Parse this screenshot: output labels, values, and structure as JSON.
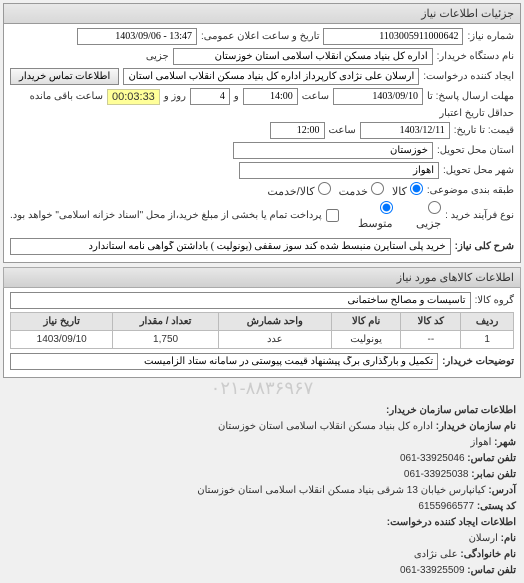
{
  "header": {
    "title": "جزئیات اطلاعات نیاز"
  },
  "fields": {
    "requestNo_label": "شماره نیاز:",
    "requestNo": "1103005911000642",
    "announceDateTime_label": "تاریخ و ساعت اعلان عمومی:",
    "announceDateTime": "13:47 - 1403/09/06",
    "deviceName_label": "نام دستگاه خریدار:",
    "deviceName": "اداره کل بنیاد مسکن انقلاب اسلامی استان خوزستان",
    "partial_label": "جزیی",
    "requester_label": "ایجاد کننده درخواست:",
    "requester": "ارسلان علی نژادی کارپرداز اداره کل بنیاد مسکن انقلاب اسلامی استان خوزست",
    "contactBtn": "اطلاعات تماس خریدار",
    "deadlineSend_label": "مهلت ارسال پاسخ: تا",
    "deadlineSend_date": "1403/09/10",
    "time_label": "ساعت",
    "deadlineSend_time": "14:00",
    "and_label": "و",
    "remain_days": "4",
    "day_label": "روز و",
    "remain_timer": "00:03:33",
    "timer_tail": "ساعت باقی مانده",
    "minValid_label": "حداقل تاریخ اعتبار",
    "priceTo_label": "قیمت: تا تاریخ:",
    "priceTo_date": "1403/12/11",
    "priceTo_time": "12:00",
    "province_label": "استان محل تحویل:",
    "province": "خوزستان",
    "city_label": "شهر محل تحویل:",
    "city": "اهواز",
    "packing_label": "طبقه بندی موضوعی:",
    "packing_opts": {
      "kala": "کالا",
      "khadamat": "خدمت",
      "kalakhadamat": "کالا/خدمت"
    },
    "buyType_label": "نوع فرآیند خرید :",
    "buyType_opts": {
      "jozi": "جزیی",
      "motavaset": "متوسط"
    },
    "paymentNote": "پرداخت تمام یا بخشی از مبلغ خرید،از محل \"اسناد خزانه اسلامی\" خواهد بود."
  },
  "needDesc": {
    "label": "شرح کلی نیاز:",
    "value": "خرید پلی استایرن منبسط شده کند سوز سقفی (یونولیت ) باداشتن گواهی نامه استاندارد"
  },
  "goods": {
    "title": "اطلاعات کالاهای مورد نیاز",
    "group_label": "گروه کالا:",
    "group": "تاسیسات و مصالح ساختمانی",
    "columns": [
      "ردیف",
      "کد کالا",
      "نام کالا",
      "واحد شمارش",
      "تعداد / مقدار",
      "تاریخ نیاز"
    ],
    "rows": [
      [
        "1",
        "--",
        "یونولیت",
        "عدد",
        "1,750",
        "1403/09/10"
      ]
    ]
  },
  "explain": {
    "label": "توضیحات خریدار:",
    "text": "تکمیل و بارگذاری برگ پیشنهاد قیمت پیوستی در سامانه ستاد الزامیست"
  },
  "contactOrg": {
    "title": "اطلاعات تماس سازمان خریدار:",
    "orgName_label": "نام سازمان خریدار:",
    "orgName": "اداره کل بنیاد مسکن انقلاب اسلامی استان خوزستان",
    "city_label": "شهر:",
    "city": "اهواز",
    "phone_label": "تلفن تماس:",
    "phone": "33925046-061",
    "fax_label": "تلفن نمابر:",
    "fax": "33925038-061",
    "addr_label": "آدرس:",
    "addr": "کیانپارس خیابان 13 شرقی بنیاد مسکن انقلاب اسلامی استان خوزستان",
    "postal_label": "کد پستی:",
    "postal": "6155966577"
  },
  "contactReq": {
    "title": "اطلاعات ایجاد کننده درخواست:",
    "name_label": "نام:",
    "name": "ارسلان",
    "family_label": "نام خانوادگی:",
    "family": "علی نژادی",
    "phone_label": "تلفن تماس:",
    "phone": "33925509-061"
  },
  "style": {
    "inputBg": "#ffffff",
    "timerBg": "#ffff99",
    "headerBg": "#e0e0e0"
  }
}
